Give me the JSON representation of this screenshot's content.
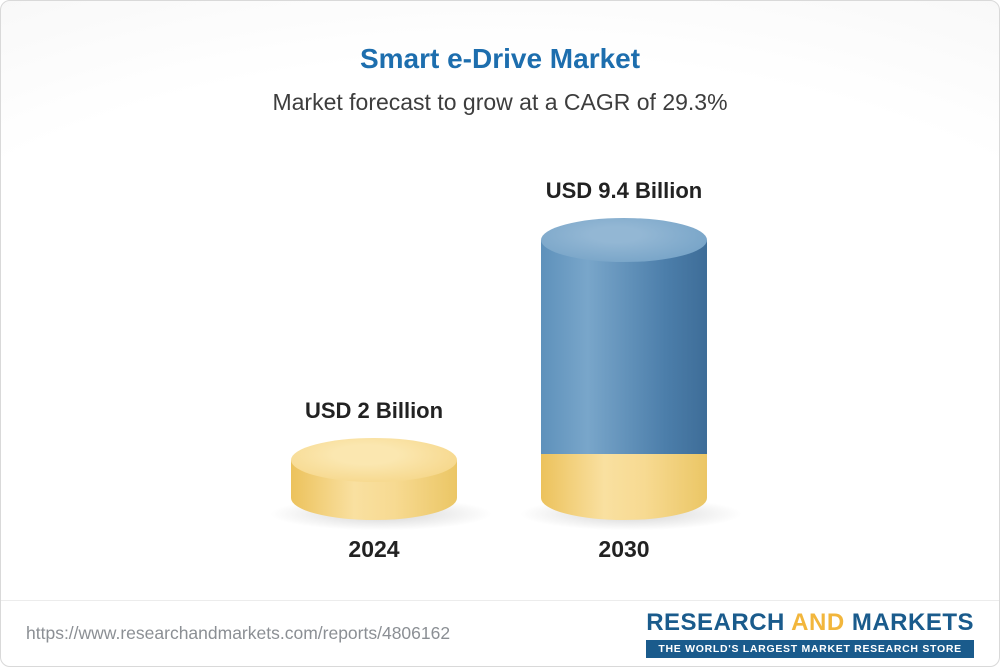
{
  "header": {
    "title": "Smart e-Drive Market",
    "subtitle": "Market forecast to grow at a CAGR of 29.3%"
  },
  "chart_data": {
    "type": "bar",
    "title": "Smart e-Drive Market",
    "subtitle": "Market forecast to grow at a CAGR of 29.3%",
    "categories": [
      "2024",
      "2030"
    ],
    "values": [
      2,
      9.4
    ],
    "value_labels": [
      "USD 2 Billion",
      "USD 9.4 Billion"
    ],
    "unit": "USD Billion",
    "cagr": "29.3%",
    "ylim": [
      0,
      9.4
    ],
    "grid": false,
    "legend": "none",
    "colors": {
      "bar_2024": "#F3D27C",
      "bar_2030": "#5688B3",
      "bar_2030_base": "#F3CB66"
    }
  },
  "footer": {
    "url": "https://www.researchandmarkets.com/reports/4806162",
    "logo": {
      "research": "RESEARCH",
      "and": "AND",
      "markets": "MARKETS",
      "tagline": "THE WORLD'S LARGEST MARKET RESEARCH STORE"
    }
  },
  "colors": {
    "title": "#1D6EAE",
    "subtitle": "#3D3D3D",
    "logo_blue": "#1A5B8C",
    "logo_yellow": "#F2B63C",
    "url_gray": "#8B8F94"
  }
}
